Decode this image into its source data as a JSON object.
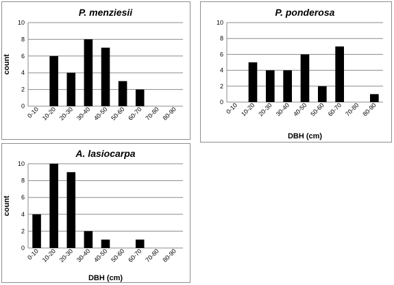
{
  "chart_data": [
    {
      "type": "bar",
      "title": "P. menziesii",
      "xlabel": "",
      "ylabel": "count",
      "ylim": [
        0,
        10
      ],
      "yticks": [
        0,
        2,
        4,
        6,
        8,
        10
      ],
      "grid": true,
      "categories": [
        "0-10",
        "10-20",
        "20-30",
        "30-40",
        "40-50",
        "50-60",
        "60-70",
        "70-80",
        "80-90"
      ],
      "values": [
        0,
        6,
        4,
        8,
        7,
        3,
        2,
        0,
        0
      ]
    },
    {
      "type": "bar",
      "title": "P. ponderosa",
      "xlabel": "DBH (cm)",
      "ylabel": "",
      "ylim": [
        0,
        10
      ],
      "yticks": [
        0,
        2,
        4,
        6,
        8,
        10
      ],
      "grid": true,
      "categories": [
        "0-10",
        "10-20",
        "20-30",
        "30-40",
        "40-50",
        "50-60",
        "60-70",
        "70-80",
        "80-90"
      ],
      "values": [
        0,
        5,
        4,
        4,
        6,
        2,
        7,
        0,
        1
      ]
    },
    {
      "type": "bar",
      "title": "A. lasiocarpa",
      "xlabel": "DBH (cm)",
      "ylabel": "count",
      "ylim": [
        0,
        10
      ],
      "yticks": [
        0,
        2,
        4,
        6,
        8,
        10
      ],
      "grid": true,
      "categories": [
        "0-10",
        "10-20",
        "20-30",
        "30-40",
        "40-50",
        "50-60",
        "60-70",
        "70-80",
        "80-90"
      ],
      "values": [
        4,
        10,
        9,
        2,
        1,
        0,
        1,
        0,
        0
      ]
    }
  ]
}
